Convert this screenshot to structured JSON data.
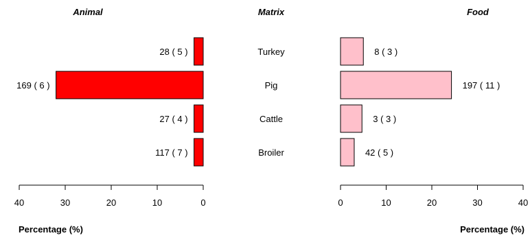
{
  "chart_data": {
    "type": "bar",
    "layout": "butterfly",
    "titles": {
      "left": "Animal",
      "center": "Matrix",
      "right": "Food"
    },
    "categories": [
      "Turkey",
      "Pig",
      "Cattle",
      "Broiler"
    ],
    "series": [
      {
        "name": "Animal",
        "side": "left",
        "values": [
          2.0,
          32.0,
          2.0,
          2.0
        ],
        "labels": [
          "28 ( 5 )",
          "169 ( 6 )",
          "27 ( 4 )",
          "117 ( 7 )"
        ],
        "color": "#ff0000"
      },
      {
        "name": "Food",
        "side": "right",
        "values": [
          5.0,
          24.3,
          4.7,
          3.0
        ],
        "labels": [
          "8 ( 3 )",
          "197 ( 11 )",
          "3 ( 3 )",
          "42 ( 5 )"
        ],
        "color": "#ffc0cb"
      }
    ],
    "xlim": [
      0,
      40
    ],
    "ticks": [
      0,
      10,
      20,
      30,
      40
    ],
    "xlabel": "Percentage (%)",
    "grid": false,
    "legend": "none"
  }
}
